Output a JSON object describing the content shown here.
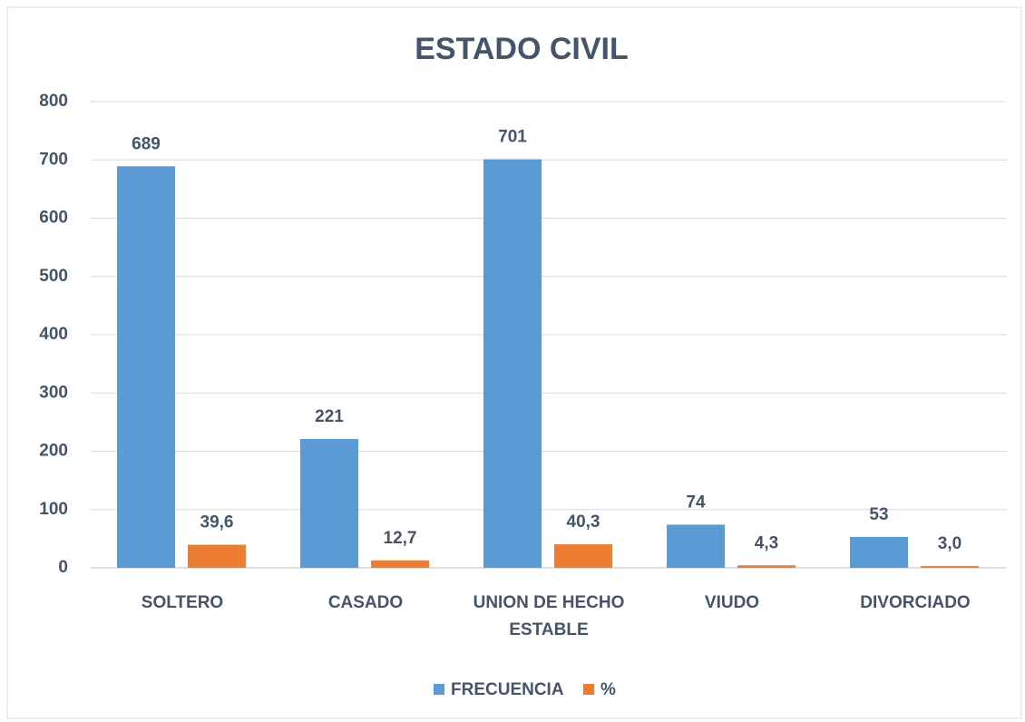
{
  "chart_data": {
    "type": "bar",
    "title": "ESTADO CIVIL",
    "categories": [
      "SOLTERO",
      "CASADO",
      "UNION DE HECHO ESTABLE",
      "VIUDO",
      "DIVORCIADO"
    ],
    "series": [
      {
        "name": "FRECUENCIA",
        "color": "#5b9bd5",
        "values": [
          689,
          221,
          701,
          74,
          53
        ]
      },
      {
        "name": "%",
        "color": "#ed7d31",
        "values": [
          39.6,
          12.7,
          40.3,
          4.3,
          3.0
        ],
        "value_labels": [
          "39,6",
          "12,7",
          "40,3",
          "4,3",
          "3,0"
        ]
      }
    ],
    "ylim": [
      0,
      800
    ],
    "yticks": [
      0,
      100,
      200,
      300,
      400,
      500,
      600,
      700,
      800
    ],
    "grid": true,
    "legend": "bottom"
  }
}
